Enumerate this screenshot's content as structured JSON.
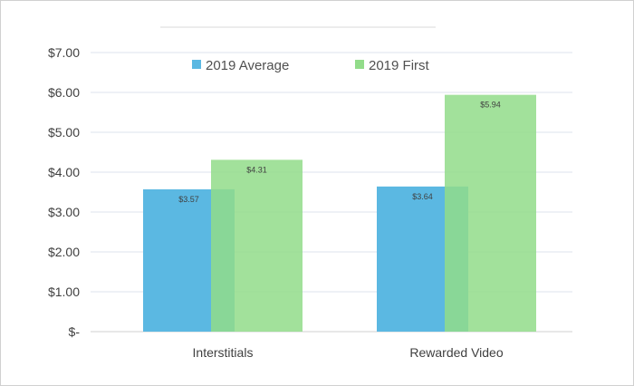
{
  "chart_data": {
    "type": "bar",
    "title": "",
    "categories": [
      "Interstitials",
      "Rewarded Video"
    ],
    "series": [
      {
        "name": "2019 Average",
        "values": [
          3.57,
          3.64
        ],
        "labels": [
          "$3.57",
          "$3.64"
        ],
        "color": "#5bb8e2"
      },
      {
        "name": "2019 First",
        "values": [
          4.31,
          5.94
        ],
        "labels": [
          "$4.31",
          "$5.94"
        ],
        "color": "#92dc8a"
      }
    ],
    "ylim": [
      0,
      7
    ],
    "yticks": [
      0,
      1,
      2,
      3,
      4,
      5,
      6,
      7
    ],
    "ytick_labels": [
      "$-",
      "$1.00",
      "$2.00",
      "$3.00",
      "$4.00",
      "$5.00",
      "$6.00",
      "$7.00"
    ],
    "grid": true,
    "legend_position": "top",
    "bars_overlap": true
  }
}
